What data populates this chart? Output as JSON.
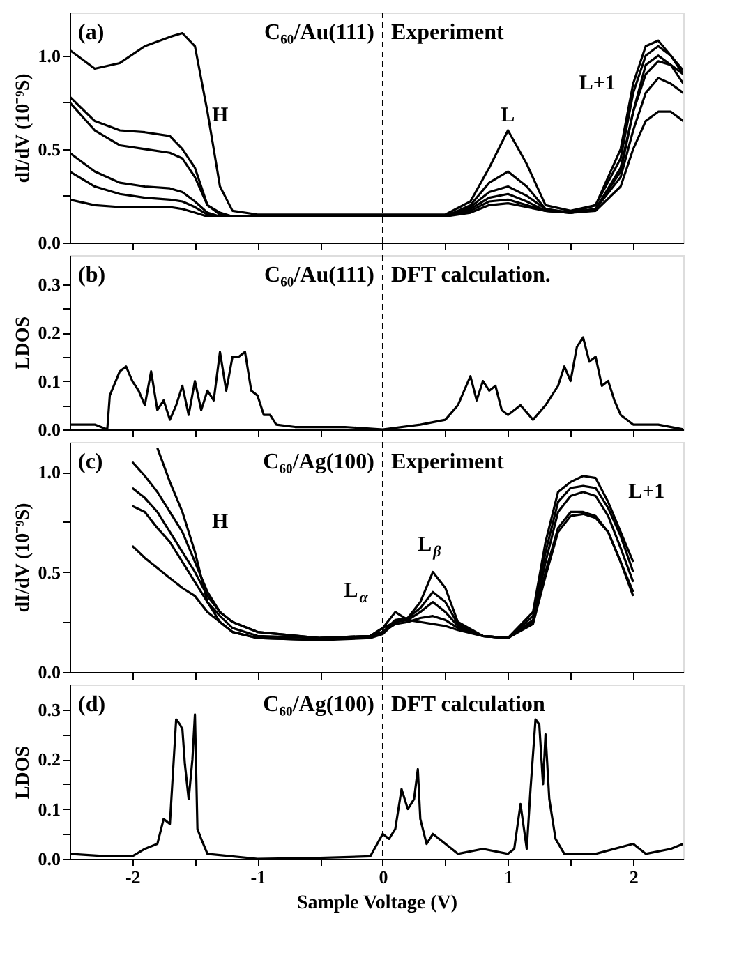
{
  "chart_data": [
    {
      "type": "line",
      "ylabel": "dI/dV (10⁻⁹S)",
      "xlim": [
        -2.5,
        2.4
      ],
      "xticks": [
        {
          "value": -2,
          "label": null
        },
        {
          "value": -1.5,
          "label": null
        },
        {
          "value": -1,
          "label": null
        },
        {
          "value": -0.5,
          "label": null
        },
        {
          "value": 0,
          "label": null
        },
        {
          "value": 0.5,
          "label": null
        },
        {
          "value": 1,
          "label": null
        },
        {
          "value": 1.5,
          "label": null
        },
        {
          "value": 2,
          "label": null
        }
      ],
      "ylim": [
        0,
        1.23
      ],
      "yticks": [
        {
          "value": 0,
          "label": "0.0"
        },
        {
          "value": 0.25,
          "label": null
        },
        0.5,
        {
          "value": 0.75,
          "label": null
        },
        {
          "value": 1,
          "label": "1.0"
        }
      ],
      "tick_labels": "y",
      "marker": "none",
      "line_style": "solid",
      "grid": false,
      "legend": false,
      "x": [
        -2.5,
        -2.3,
        -2.1,
        -1.9,
        -1.7,
        -1.6,
        -1.5,
        -1.4,
        -1.3,
        -1.2,
        -1.0,
        -0.5,
        0,
        0.5,
        0.7,
        0.85,
        1.0,
        1.15,
        1.3,
        1.5,
        1.7,
        1.9,
        2.0,
        2.1,
        2.2,
        2.3,
        2.4
      ],
      "series": [
        {
          "color": "#000000",
          "values": [
            1.03,
            0.93,
            0.96,
            1.05,
            1.1,
            1.12,
            1.05,
            0.7,
            0.3,
            0.17,
            0.15,
            0.15,
            0.15,
            0.15,
            0.22,
            0.4,
            0.6,
            0.42,
            0.2,
            0.17,
            0.2,
            0.5,
            0.85,
            1.05,
            1.08,
            1.0,
            0.9
          ]
        },
        {
          "color": "#000000",
          "values": [
            0.78,
            0.65,
            0.6,
            0.59,
            0.57,
            0.5,
            0.4,
            0.2,
            0.16,
            0.14,
            0.14,
            0.14,
            0.14,
            0.14,
            0.2,
            0.32,
            0.38,
            0.3,
            0.18,
            0.16,
            0.2,
            0.45,
            0.8,
            1.0,
            1.05,
            1.0,
            0.92
          ]
        },
        {
          "color": "#000000",
          "values": [
            0.75,
            0.6,
            0.52,
            0.5,
            0.48,
            0.45,
            0.35,
            0.2,
            0.15,
            0.14,
            0.14,
            0.14,
            0.14,
            0.14,
            0.19,
            0.27,
            0.3,
            0.25,
            0.18,
            0.16,
            0.18,
            0.4,
            0.7,
            0.9,
            0.97,
            0.95,
            0.9
          ]
        },
        {
          "color": "#000000",
          "values": [
            0.48,
            0.38,
            0.32,
            0.3,
            0.29,
            0.27,
            0.22,
            0.16,
            0.14,
            0.14,
            0.14,
            0.14,
            0.14,
            0.14,
            0.18,
            0.24,
            0.26,
            0.22,
            0.17,
            0.16,
            0.18,
            0.35,
            0.6,
            0.8,
            0.88,
            0.85,
            0.8
          ]
        },
        {
          "color": "#000000",
          "values": [
            0.38,
            0.3,
            0.26,
            0.24,
            0.23,
            0.22,
            0.19,
            0.15,
            0.14,
            0.14,
            0.14,
            0.14,
            0.14,
            0.14,
            0.17,
            0.22,
            0.23,
            0.2,
            0.17,
            0.16,
            0.17,
            0.3,
            0.5,
            0.65,
            0.7,
            0.7,
            0.65
          ]
        },
        {
          "color": "#000000",
          "values": [
            0.23,
            0.2,
            0.19,
            0.19,
            0.19,
            0.18,
            0.16,
            0.14,
            0.14,
            0.14,
            0.14,
            0.14,
            0.14,
            0.14,
            0.16,
            0.2,
            0.21,
            0.19,
            0.17,
            0.16,
            0.18,
            0.38,
            0.7,
            0.95,
            1.0,
            0.95,
            0.85
          ]
        }
      ],
      "ref_lines": [
        {
          "axis": "x",
          "value": 0,
          "line_style": "dashed",
          "color": "#000000"
        }
      ],
      "annotations": [
        "(a)",
        "C₆₀/Au(111)",
        "Experiment",
        "H",
        "L",
        "L+1"
      ]
    },
    {
      "type": "line",
      "ylabel": "LDOS",
      "xlim": [
        -2.5,
        2.4
      ],
      "xticks": [
        {
          "value": -2,
          "label": null
        },
        {
          "value": -1.5,
          "label": null
        },
        {
          "value": -1,
          "label": null
        },
        {
          "value": -0.5,
          "label": null
        },
        {
          "value": 0,
          "label": null
        },
        {
          "value": 0.5,
          "label": null
        },
        {
          "value": 1,
          "label": null
        },
        {
          "value": 1.5,
          "label": null
        },
        {
          "value": 2,
          "label": null
        }
      ],
      "ylim": [
        0,
        0.36
      ],
      "yticks": [
        {
          "value": 0,
          "label": "0.0"
        },
        {
          "value": 0.05,
          "label": null
        },
        0.1,
        {
          "value": 0.15,
          "label": null
        },
        0.2,
        {
          "value": 0.25,
          "label": null
        },
        0.3
      ],
      "tick_labels": "y",
      "marker": "none",
      "line_style": "solid",
      "grid": false,
      "legend": false,
      "x": [
        -2.5,
        -2.3,
        -2.2,
        -2.18,
        -2.1,
        -2.05,
        -2.0,
        -1.95,
        -1.9,
        -1.85,
        -1.8,
        -1.75,
        -1.7,
        -1.65,
        -1.6,
        -1.55,
        -1.5,
        -1.45,
        -1.4,
        -1.35,
        -1.3,
        -1.25,
        -1.2,
        -1.15,
        -1.1,
        -1.05,
        -1.0,
        -0.95,
        -0.9,
        -0.85,
        -0.7,
        -0.3,
        0,
        0.3,
        0.5,
        0.6,
        0.7,
        0.75,
        0.8,
        0.85,
        0.9,
        0.95,
        1.0,
        1.05,
        1.1,
        1.2,
        1.3,
        1.4,
        1.45,
        1.5,
        1.55,
        1.6,
        1.65,
        1.7,
        1.75,
        1.8,
        1.85,
        1.9,
        2.0,
        2.2,
        2.4
      ],
      "series": [
        {
          "color": "#000000",
          "values": [
            0.01,
            0.01,
            0.0,
            0.07,
            0.12,
            0.13,
            0.1,
            0.08,
            0.05,
            0.12,
            0.04,
            0.06,
            0.02,
            0.05,
            0.09,
            0.03,
            0.1,
            0.04,
            0.08,
            0.06,
            0.16,
            0.08,
            0.15,
            0.15,
            0.16,
            0.08,
            0.07,
            0.03,
            0.03,
            0.01,
            0.005,
            0.005,
            0.0,
            0.01,
            0.02,
            0.05,
            0.11,
            0.06,
            0.1,
            0.08,
            0.09,
            0.04,
            0.03,
            0.04,
            0.05,
            0.02,
            0.05,
            0.09,
            0.13,
            0.1,
            0.17,
            0.19,
            0.14,
            0.15,
            0.09,
            0.1,
            0.06,
            0.03,
            0.01,
            0.01,
            0.0
          ]
        }
      ],
      "ref_lines": [
        {
          "axis": "x",
          "value": 0,
          "line_style": "dashed",
          "color": "#000000"
        }
      ],
      "annotations": [
        "(b)",
        "C₆₀/Au(111)",
        "DFT calculation."
      ]
    },
    {
      "type": "line",
      "ylabel": "dI/dV (10⁻⁹S)",
      "xlim": [
        -2.5,
        2.4
      ],
      "xticks": [
        {
          "value": -2,
          "label": null
        },
        {
          "value": -1.5,
          "label": null
        },
        {
          "value": -1,
          "label": null
        },
        {
          "value": -0.5,
          "label": null
        },
        {
          "value": 0,
          "label": null
        },
        {
          "value": 0.5,
          "label": null
        },
        {
          "value": 1,
          "label": null
        },
        {
          "value": 1.5,
          "label": null
        },
        {
          "value": 2,
          "label": null
        }
      ],
      "ylim": [
        0,
        1.15
      ],
      "yticks": [
        {
          "value": 0,
          "label": "0.0"
        },
        {
          "value": 0.25,
          "label": null
        },
        0.5,
        {
          "value": 0.75,
          "label": null
        },
        {
          "value": 1,
          "label": "1.0"
        }
      ],
      "tick_labels": "y",
      "marker": "none",
      "line_style": "solid",
      "grid": false,
      "legend": false,
      "x": [
        -2.0,
        -1.9,
        -1.8,
        -1.7,
        -1.6,
        -1.5,
        -1.4,
        -1.3,
        -1.2,
        -1.0,
        -0.5,
        -0.1,
        0.0,
        0.1,
        0.2,
        0.3,
        0.4,
        0.5,
        0.6,
        0.8,
        1.0,
        1.2,
        1.3,
        1.4,
        1.5,
        1.6,
        1.7,
        1.8,
        1.9,
        2.0
      ],
      "series": [
        {
          "color": "#000000",
          "values": [
            null,
            null,
            1.12,
            0.95,
            0.8,
            0.6,
            0.35,
            0.25,
            0.2,
            0.17,
            0.16,
            0.17,
            0.19,
            0.25,
            0.27,
            0.35,
            0.5,
            0.42,
            0.25,
            0.18,
            0.17,
            0.3,
            0.65,
            0.9,
            0.95,
            0.98,
            0.97,
            0.85,
            0.7,
            0.55
          ]
        },
        {
          "color": "#000000",
          "values": [
            1.05,
            0.98,
            0.9,
            0.8,
            0.7,
            0.55,
            0.4,
            0.3,
            0.25,
            0.2,
            0.17,
            0.18,
            0.2,
            0.26,
            0.27,
            0.32,
            0.4,
            0.35,
            0.24,
            0.18,
            0.17,
            0.28,
            0.6,
            0.85,
            0.92,
            0.93,
            0.92,
            0.82,
            0.68,
            0.5
          ]
        },
        {
          "color": "#000000",
          "values": [
            0.92,
            0.87,
            0.8,
            0.7,
            0.6,
            0.5,
            0.38,
            0.3,
            0.25,
            0.2,
            0.17,
            0.18,
            0.22,
            0.25,
            0.26,
            0.3,
            0.35,
            0.3,
            0.23,
            0.18,
            0.17,
            0.26,
            0.55,
            0.8,
            0.88,
            0.9,
            0.88,
            0.78,
            0.62,
            0.45
          ]
        },
        {
          "color": "#000000",
          "values": [
            0.83,
            0.8,
            0.72,
            0.65,
            0.55,
            0.45,
            0.35,
            0.28,
            0.22,
            0.18,
            0.17,
            0.18,
            0.2,
            0.24,
            0.25,
            0.27,
            0.28,
            0.26,
            0.22,
            0.18,
            0.17,
            0.25,
            0.5,
            0.72,
            0.8,
            0.8,
            0.78,
            0.7,
            0.55,
            0.4
          ]
        },
        {
          "color": "#000000",
          "values": [
            0.63,
            0.57,
            0.52,
            0.47,
            0.42,
            0.38,
            0.3,
            0.25,
            0.2,
            0.17,
            0.16,
            0.18,
            0.22,
            0.3,
            0.26,
            0.25,
            0.24,
            0.23,
            0.21,
            0.18,
            0.17,
            0.24,
            0.48,
            0.7,
            0.78,
            0.79,
            0.77,
            0.7,
            0.55,
            0.38
          ]
        }
      ],
      "ref_lines": [
        {
          "axis": "x",
          "value": 0,
          "line_style": "dashed",
          "color": "#000000"
        }
      ],
      "annotations": [
        "(c)",
        "C₆₀/Ag(100)",
        "Experiment",
        "H",
        "L$_{α}$",
        "L$_{β}$",
        "L+1"
      ]
    },
    {
      "type": "line",
      "ylabel": "LDOS",
      "xlabel": "Sample Voltage (V)",
      "xlim": [
        -2.5,
        2.4
      ],
      "xticks": [
        -2,
        {
          "value": -1.5,
          "label": null
        },
        -1,
        {
          "value": -0.5,
          "label": null
        },
        0,
        {
          "value": 0.5,
          "label": null
        },
        1,
        {
          "value": 1.5,
          "label": null
        },
        2
      ],
      "ylim": [
        0,
        0.35
      ],
      "yticks": [
        {
          "value": 0,
          "label": "0.0"
        },
        {
          "value": 0.05,
          "label": null
        },
        0.1,
        {
          "value": 0.15,
          "label": null
        },
        0.2,
        {
          "value": 0.25,
          "label": null
        },
        0.3
      ],
      "marker": "none",
      "line_style": "solid",
      "grid": false,
      "legend": false,
      "x": [
        -2.5,
        -2.2,
        -2.0,
        -1.9,
        -1.8,
        -1.75,
        -1.7,
        -1.65,
        -1.62,
        -1.6,
        -1.58,
        -1.55,
        -1.52,
        -1.5,
        -1.48,
        -1.45,
        -1.4,
        -1.0,
        -0.5,
        -0.1,
        0.0,
        0.05,
        0.1,
        0.15,
        0.2,
        0.25,
        0.28,
        0.3,
        0.35,
        0.4,
        0.5,
        0.6,
        0.8,
        1.0,
        1.05,
        1.1,
        1.15,
        1.18,
        1.22,
        1.25,
        1.28,
        1.3,
        1.33,
        1.38,
        1.45,
        1.7,
        2.0,
        2.1,
        2.3,
        2.4
      ],
      "series": [
        {
          "color": "#000000",
          "values": [
            0.01,
            0.005,
            0.005,
            0.02,
            0.03,
            0.08,
            0.07,
            0.28,
            0.27,
            0.26,
            0.19,
            0.12,
            0.2,
            0.29,
            0.06,
            0.04,
            0.01,
            0.0,
            0.002,
            0.005,
            0.05,
            0.04,
            0.06,
            0.14,
            0.1,
            0.12,
            0.18,
            0.08,
            0.03,
            0.05,
            0.03,
            0.01,
            0.02,
            0.01,
            0.02,
            0.11,
            0.02,
            0.14,
            0.28,
            0.27,
            0.15,
            0.25,
            0.12,
            0.04,
            0.01,
            0.01,
            0.03,
            0.01,
            0.02,
            0.03
          ]
        }
      ],
      "ref_lines": [
        {
          "axis": "x",
          "value": 0,
          "line_style": "dashed",
          "color": "#000000"
        }
      ],
      "annotations": [
        "(d)",
        "C₆₀/Ag(100)",
        "DFT calculation"
      ]
    }
  ]
}
